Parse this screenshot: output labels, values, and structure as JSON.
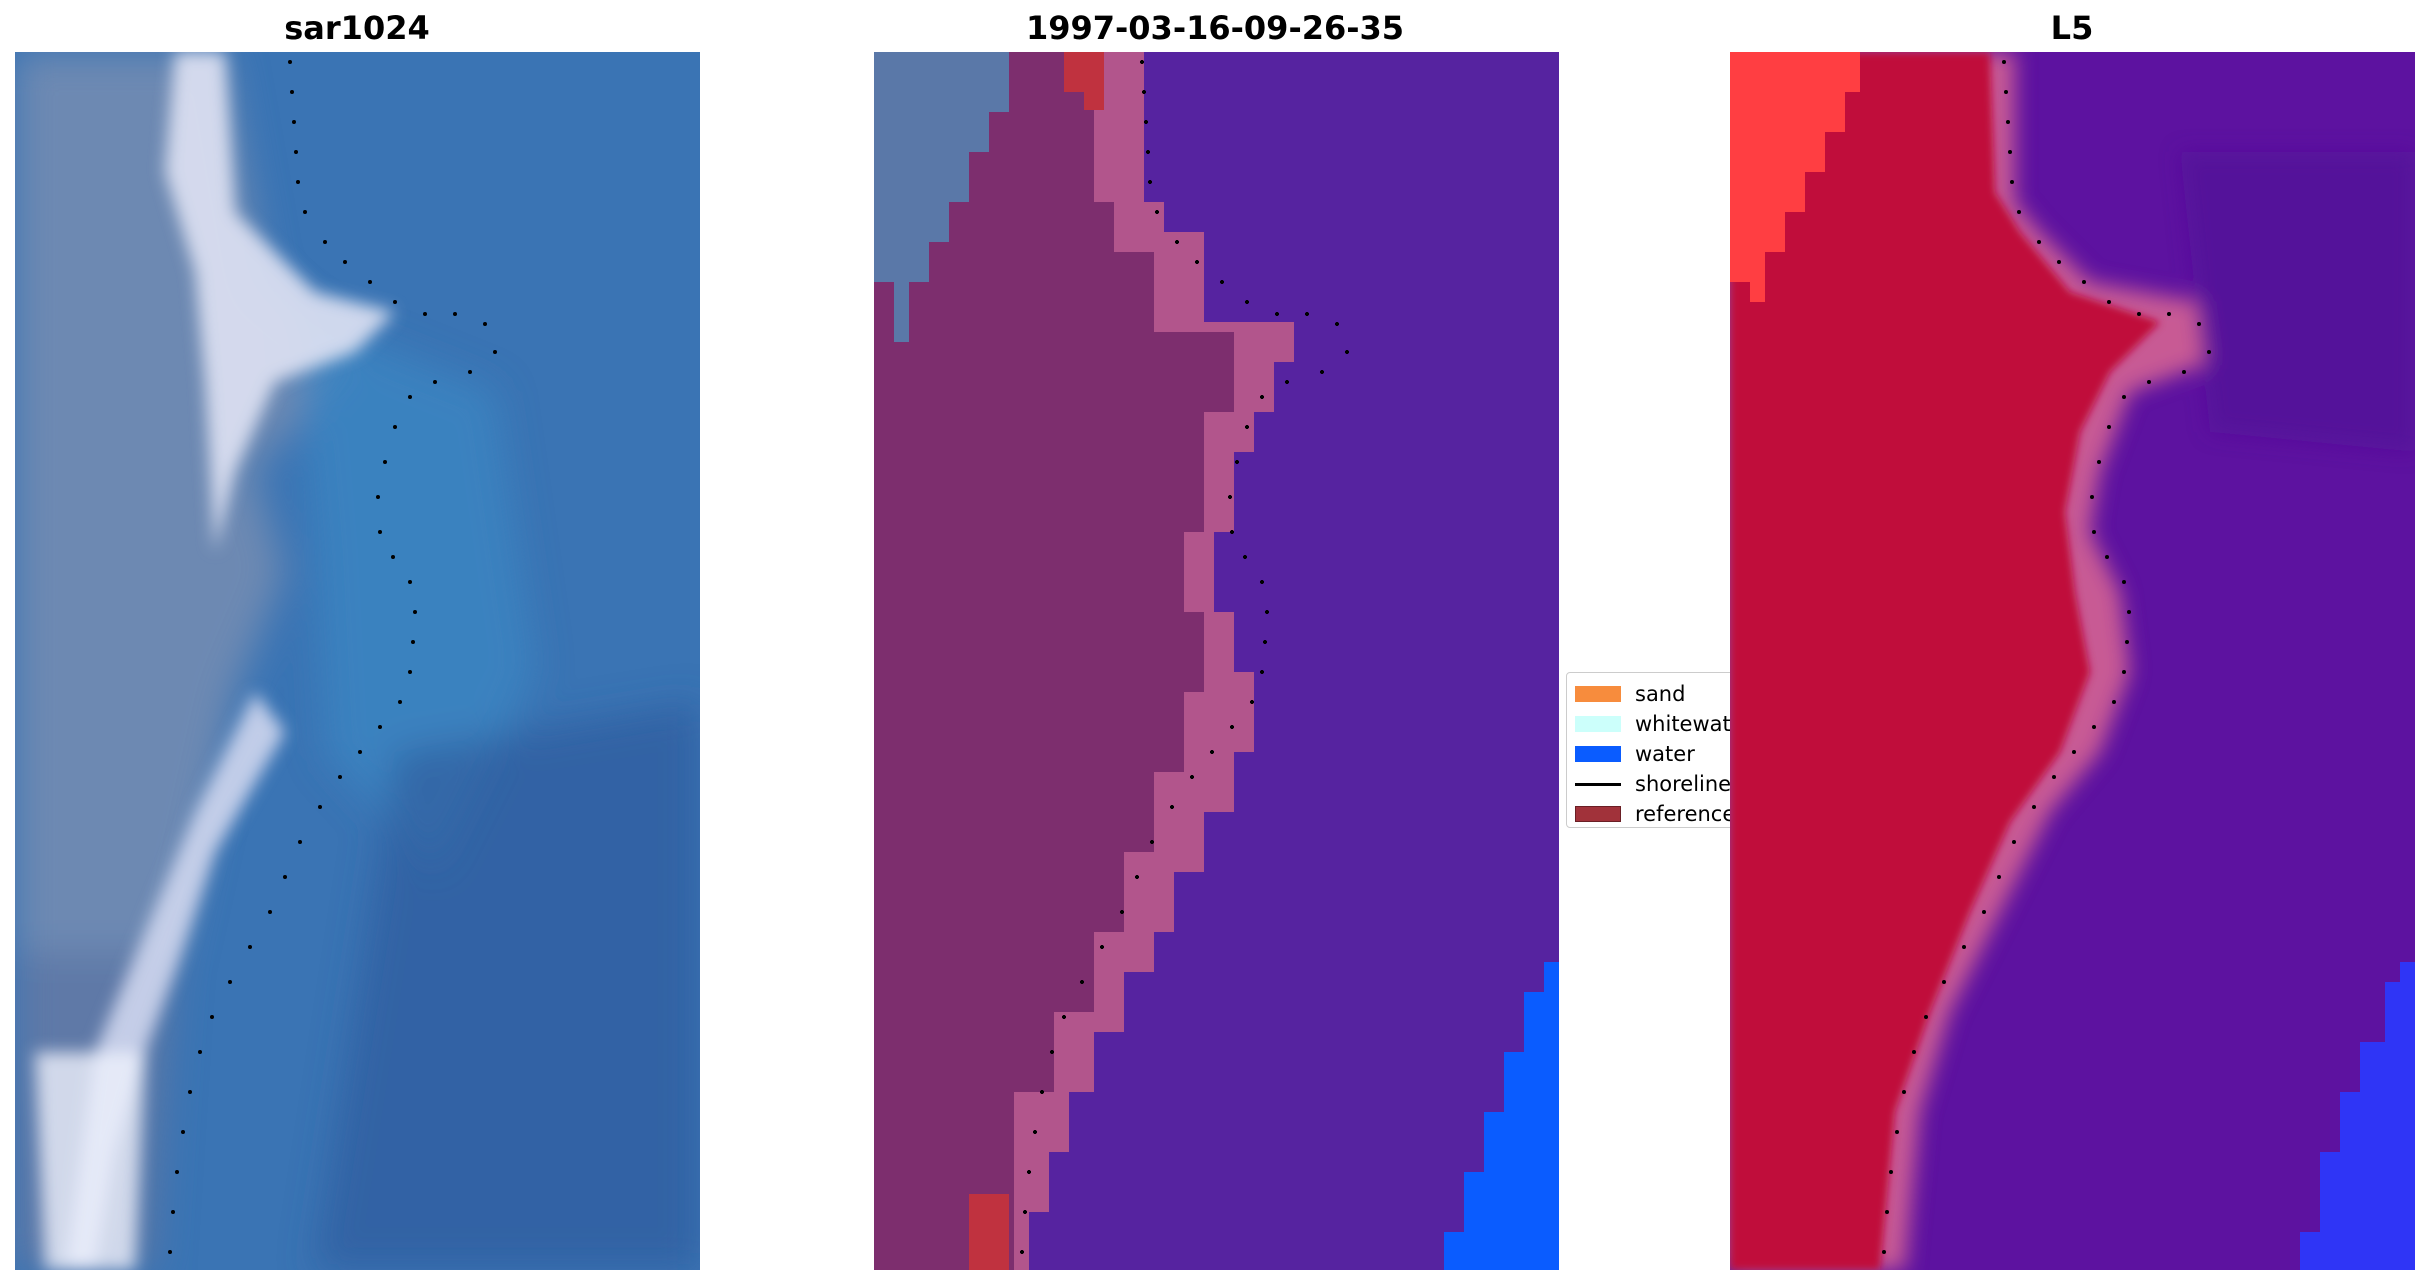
{
  "panels": [
    {
      "title": "sar1024",
      "kind": "rgb-composite",
      "palette": {
        "base": "#3e73b0",
        "land": "#6f8fb5",
        "surf": "#e8eaf6",
        "deep": "#2f5da0"
      }
    },
    {
      "title": "1997-03-16-09-26-35",
      "kind": "classified",
      "palette": {
        "water": "#5623a0",
        "sand": "#7d2e6e",
        "swash": "#b2558c",
        "reference": "#c0323f",
        "blue": "#0a5cff",
        "greyband": "#5a78a8"
      }
    },
    {
      "title": "L5",
      "kind": "probability",
      "palette": {
        "land": "#c0093a",
        "water": "#5d12a0",
        "edge": "#c85a94",
        "topleft": "#ff3e42",
        "blue": "#2a3aff"
      }
    }
  ],
  "legend": {
    "items": [
      {
        "label": "sand",
        "color": "#f78c3d",
        "kind": "patch"
      },
      {
        "label": "whitewater",
        "color": "#ccfffb",
        "kind": "patch"
      },
      {
        "label": "water",
        "color": "#0a5cff",
        "kind": "patch"
      },
      {
        "label": "shoreline",
        "color": "#000000",
        "kind": "line"
      },
      {
        "label": "reference",
        "color": "#a1323a",
        "kind": "patch"
      }
    ]
  }
}
